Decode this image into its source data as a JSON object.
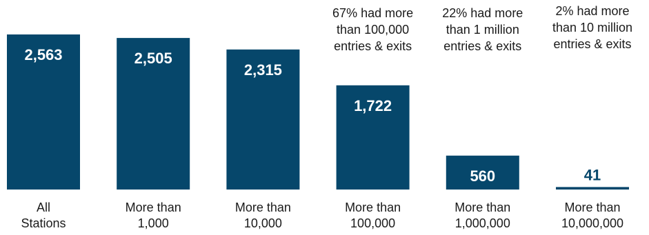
{
  "chart_data": {
    "type": "bar",
    "title": "",
    "xlabel": "",
    "ylabel": "",
    "ylim": [
      0,
      2563
    ],
    "grid": false,
    "bar_color": "#06476b",
    "label_color_inside": "#ffffff",
    "label_color_outside": "#06476b",
    "categories": [
      [
        "All",
        "Stations"
      ],
      [
        "More than",
        "1,000"
      ],
      [
        "More than",
        "10,000"
      ],
      [
        "More than",
        "100,000"
      ],
      [
        "More than",
        "1,000,000"
      ],
      [
        "More than",
        "10,000,000"
      ]
    ],
    "values": [
      2563,
      2505,
      2315,
      1722,
      560,
      41
    ],
    "value_labels": [
      "2,563",
      "2,505",
      "2,315",
      "1,722",
      "560",
      "41"
    ],
    "annotations": [
      {
        "bar_index": 3,
        "lines": [
          "67% had more",
          "than 100,000",
          "entries & exits"
        ]
      },
      {
        "bar_index": 4,
        "lines": [
          "22% had more",
          "than 1 million",
          "entries & exits"
        ]
      },
      {
        "bar_index": 5,
        "lines": [
          "2% had more",
          "than 10 million",
          "entries & exits"
        ]
      }
    ]
  }
}
